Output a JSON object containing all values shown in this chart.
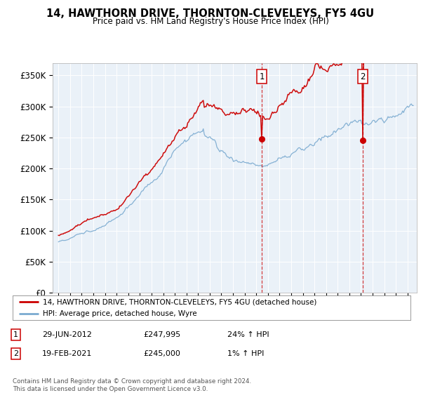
{
  "title": "14, HAWTHORN DRIVE, THORNTON-CLEVELEYS, FY5 4GU",
  "subtitle": "Price paid vs. HM Land Registry's House Price Index (HPI)",
  "legend_line1": "14, HAWTHORN DRIVE, THORNTON-CLEVELEYS, FY5 4GU (detached house)",
  "legend_line2": "HPI: Average price, detached house, Wyre",
  "ann1_label": "1",
  "ann1_date": "29-JUN-2012",
  "ann1_price": "£247,995",
  "ann1_hpi": "24% ↑ HPI",
  "ann1_year": 2012.49,
  "ann1_val": 247995,
  "ann2_label": "2",
  "ann2_date": "19-FEB-2021",
  "ann2_price": "£245,000",
  "ann2_hpi": "1% ↑ HPI",
  "ann2_year": 2021.13,
  "ann2_val": 245000,
  "footer": "Contains HM Land Registry data © Crown copyright and database right 2024.\nThis data is licensed under the Open Government Licence v3.0.",
  "price_color": "#cc0000",
  "hpi_color": "#7aaad0",
  "ylim": [
    0,
    370000
  ],
  "yticks": [
    0,
    50000,
    100000,
    150000,
    200000,
    250000,
    300000,
    350000
  ],
  "ytick_labels": [
    "£0",
    "£50K",
    "£100K",
    "£150K",
    "£200K",
    "£250K",
    "£300K",
    "£350K"
  ],
  "xlim_start": 1994.5,
  "xlim_end": 2025.8
}
